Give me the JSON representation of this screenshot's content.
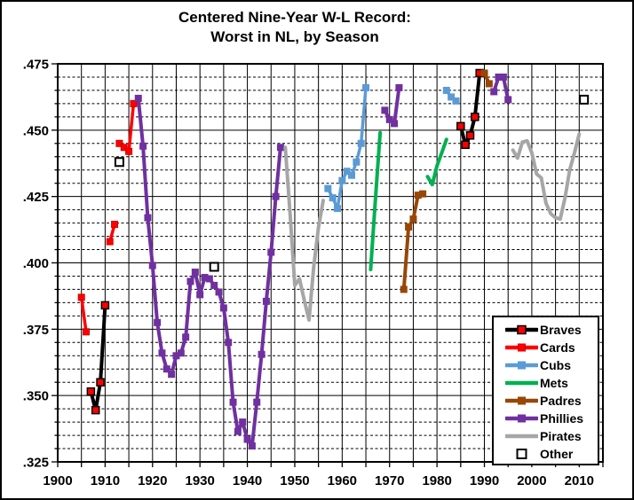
{
  "title": {
    "line1": "Centered Nine-Year W-L Record:",
    "line2": "Worst in NL, by Season"
  },
  "colors": {
    "braves_line": "#000000",
    "braves_marker_fill": "#FF0000",
    "cards": "#FF0000",
    "cubs": "#5B9BD5",
    "mets": "#00B050",
    "padres": "#974706",
    "phillies": "#7030A0",
    "pirates": "#A6A6A6",
    "other_marker_fill": "#FFFFFF",
    "axis": "#000000",
    "background": "#FFFFFF"
  },
  "legend": {
    "entries": [
      {
        "label": "Braves",
        "team": "Braves"
      },
      {
        "label": "Cards",
        "team": "Cards"
      },
      {
        "label": "Cubs",
        "team": "Cubs"
      },
      {
        "label": "Mets",
        "team": "Mets"
      },
      {
        "label": "Padres",
        "team": "Padres"
      },
      {
        "label": "Phillies",
        "team": "Phillies"
      },
      {
        "label": "Pirates",
        "team": "Pirates"
      },
      {
        "label": "Other",
        "team": "Other"
      }
    ]
  },
  "chart_data": {
    "type": "line",
    "title": "Centered Nine-Year W-L Record: Worst in NL, by Season",
    "xlabel": "",
    "ylabel": "",
    "x_axis": {
      "min": 1900,
      "max": 2015,
      "minor_tick_step": 5,
      "label_step": 10,
      "labels": [
        "1900",
        "1910",
        "1920",
        "1930",
        "1940",
        "1950",
        "1960",
        "1970",
        "1980",
        "1990",
        "2000",
        "2010"
      ]
    },
    "y_axis": {
      "min": 0.325,
      "max": 0.475,
      "major_step": 0.025,
      "minor_step": 0.005,
      "labels": [
        ".475",
        ".450",
        ".425",
        ".400",
        ".375",
        ".350",
        ".325"
      ]
    },
    "grid": {
      "vertical": "solid every 5 years",
      "horizontal_major": "solid every .025",
      "horizontal_minor": "dashed every .005"
    },
    "legend_position": "inside-bottom-right",
    "styles": {
      "Braves": {
        "line_color": "#000000",
        "line_width": 4,
        "marker": "square",
        "marker_fill": "#FF0000",
        "marker_edge": "#000000",
        "marker_size": 8,
        "marker_stroke_width": 1.5
      },
      "Cards": {
        "line_color": "#FF0000",
        "line_width": 3.5,
        "marker": "square",
        "marker_fill": "#FF0000",
        "marker_edge": "#D00000",
        "marker_size": 7,
        "marker_stroke_width": 1
      },
      "Cubs": {
        "line_color": "#5B9BD5",
        "line_width": 3.5,
        "marker": "square",
        "marker_fill": "#5B9BD5",
        "marker_edge": "#5B9BD5",
        "marker_size": 7,
        "marker_stroke_width": 1
      },
      "Mets": {
        "line_color": "#00B050",
        "line_width": 4,
        "marker": "none",
        "marker_fill": "none",
        "marker_edge": "none",
        "marker_size": 0,
        "marker_stroke_width": 0
      },
      "Padres": {
        "line_color": "#974706",
        "line_width": 4,
        "marker": "square",
        "marker_fill": "#974706",
        "marker_edge": "#974706",
        "marker_size": 7,
        "marker_stroke_width": 1
      },
      "Phillies": {
        "line_color": "#7030A0",
        "line_width": 4,
        "marker": "square",
        "marker_fill": "#7030A0",
        "marker_edge": "#7030A0",
        "marker_size": 7,
        "marker_stroke_width": 1
      },
      "Pirates": {
        "line_color": "#A6A6A6",
        "line_width": 4,
        "marker": "none",
        "marker_fill": "none",
        "marker_edge": "none",
        "marker_size": 0,
        "marker_stroke_width": 0
      },
      "Other": {
        "line_color": "none",
        "line_width": 0,
        "marker": "square",
        "marker_fill": "#FFFFFF",
        "marker_edge": "#000000",
        "marker_size": 9,
        "marker_stroke_width": 2
      }
    },
    "series": [
      {
        "id": "cards-a",
        "team": "Cards",
        "points": [
          [
            1905,
            0.387
          ],
          [
            1906,
            0.374
          ]
        ]
      },
      {
        "id": "braves-a",
        "team": "Braves",
        "points": [
          [
            1907,
            0.3515
          ],
          [
            1908,
            0.3445
          ],
          [
            1909,
            0.355
          ],
          [
            1910,
            0.384
          ]
        ]
      },
      {
        "id": "cards-b",
        "team": "Cards",
        "points": [
          [
            1911,
            0.408
          ],
          [
            1912,
            0.4145
          ]
        ]
      },
      {
        "id": "cards-c",
        "team": "Cards",
        "points": [
          [
            1913,
            0.445
          ],
          [
            1914,
            0.4435
          ],
          [
            1915,
            0.442
          ],
          [
            1916,
            0.46
          ]
        ]
      },
      {
        "id": "phillies-a",
        "team": "Phillies",
        "points": [
          [
            1917,
            0.462
          ],
          [
            1918,
            0.444
          ],
          [
            1919,
            0.417
          ],
          [
            1920,
            0.399
          ],
          [
            1921,
            0.3775
          ],
          [
            1922,
            0.366
          ],
          [
            1923,
            0.36
          ],
          [
            1924,
            0.358
          ],
          [
            1925,
            0.365
          ],
          [
            1926,
            0.366
          ],
          [
            1927,
            0.372
          ],
          [
            1928,
            0.393
          ],
          [
            1929,
            0.3965
          ],
          [
            1930,
            0.388
          ],
          [
            1931,
            0.3945
          ],
          [
            1932,
            0.394
          ],
          [
            1933,
            0.3915
          ],
          [
            1934,
            0.389
          ],
          [
            1935,
            0.383
          ],
          [
            1936,
            0.37
          ],
          [
            1937,
            0.3475
          ],
          [
            1938,
            0.3365
          ],
          [
            1939,
            0.34
          ],
          [
            1940,
            0.3335
          ],
          [
            1941,
            0.331
          ],
          [
            1942,
            0.3475
          ],
          [
            1943,
            0.3655
          ],
          [
            1944,
            0.3855
          ],
          [
            1945,
            0.404
          ],
          [
            1946,
            0.425
          ],
          [
            1947,
            0.4435
          ]
        ]
      },
      {
        "id": "pirates-a",
        "team": "Pirates",
        "points": [
          [
            1948,
            0.4435
          ],
          [
            1949,
            0.419
          ],
          [
            1950,
            0.3915
          ],
          [
            1951,
            0.394
          ],
          [
            1952,
            0.386
          ],
          [
            1953,
            0.3785
          ],
          [
            1954,
            0.3985
          ],
          [
            1955,
            0.4135
          ],
          [
            1956,
            0.4235
          ]
        ]
      },
      {
        "id": "cubs-a",
        "team": "Cubs",
        "points": [
          [
            1957,
            0.428
          ],
          [
            1958,
            0.4245
          ],
          [
            1959,
            0.4205
          ],
          [
            1960,
            0.431
          ],
          [
            1961,
            0.4345
          ],
          [
            1962,
            0.433
          ],
          [
            1963,
            0.438
          ],
          [
            1964,
            0.445
          ],
          [
            1965,
            0.466
          ]
        ]
      },
      {
        "id": "mets-a",
        "team": "Mets",
        "points": [
          [
            1966,
            0.3975
          ],
          [
            1967,
            0.4235
          ],
          [
            1968,
            0.449
          ]
        ]
      },
      {
        "id": "phillies-b",
        "team": "Phillies",
        "points": [
          [
            1969,
            0.4575
          ],
          [
            1970,
            0.454
          ],
          [
            1971,
            0.4525
          ],
          [
            1972,
            0.466
          ]
        ]
      },
      {
        "id": "padres-a",
        "team": "Padres",
        "points": [
          [
            1973,
            0.39
          ],
          [
            1974,
            0.4135
          ],
          [
            1975,
            0.4165
          ],
          [
            1976,
            0.4255
          ],
          [
            1977,
            0.426
          ]
        ]
      },
      {
        "id": "mets-b",
        "team": "Mets",
        "points": [
          [
            1978,
            0.4325
          ],
          [
            1979,
            0.4295
          ],
          [
            1980,
            0.4365
          ],
          [
            1981,
            0.4415
          ],
          [
            1982,
            0.4465
          ]
        ]
      },
      {
        "id": "cubs-b",
        "team": "Cubs",
        "points": [
          [
            1982,
            0.465
          ],
          [
            1983,
            0.4625
          ],
          [
            1984,
            0.461
          ]
        ]
      },
      {
        "id": "braves-b",
        "team": "Braves",
        "points": [
          [
            1985,
            0.4515
          ],
          [
            1986,
            0.4445
          ],
          [
            1987,
            0.448
          ],
          [
            1988,
            0.455
          ],
          [
            1989,
            0.4715
          ]
        ]
      },
      {
        "id": "padres-b",
        "team": "Padres",
        "points": [
          [
            1990,
            0.4715
          ],
          [
            1991,
            0.4675
          ]
        ]
      },
      {
        "id": "phillies-c",
        "team": "Phillies",
        "points": [
          [
            1992,
            0.4645
          ],
          [
            1993,
            0.47
          ],
          [
            1994,
            0.47
          ],
          [
            1995,
            0.4615
          ]
        ]
      },
      {
        "id": "pirates-b",
        "team": "Pirates",
        "points": [
          [
            1996,
            0.4425
          ],
          [
            1997,
            0.4395
          ],
          [
            1998,
            0.4455
          ],
          [
            1999,
            0.446
          ],
          [
            2000,
            0.4415
          ],
          [
            2001,
            0.4335
          ],
          [
            2002,
            0.432
          ],
          [
            2003,
            0.4225
          ],
          [
            2004,
            0.4185
          ],
          [
            2005,
            0.417
          ],
          [
            2006,
            0.4165
          ],
          [
            2007,
            0.4245
          ],
          [
            2008,
            0.435
          ],
          [
            2009,
            0.4415
          ],
          [
            2010,
            0.4485
          ]
        ]
      },
      {
        "id": "other-points",
        "team": "Other",
        "markers_only": true,
        "points": [
          [
            1913,
            0.438
          ],
          [
            1933,
            0.3985
          ],
          [
            2011,
            0.4615
          ]
        ]
      }
    ]
  }
}
